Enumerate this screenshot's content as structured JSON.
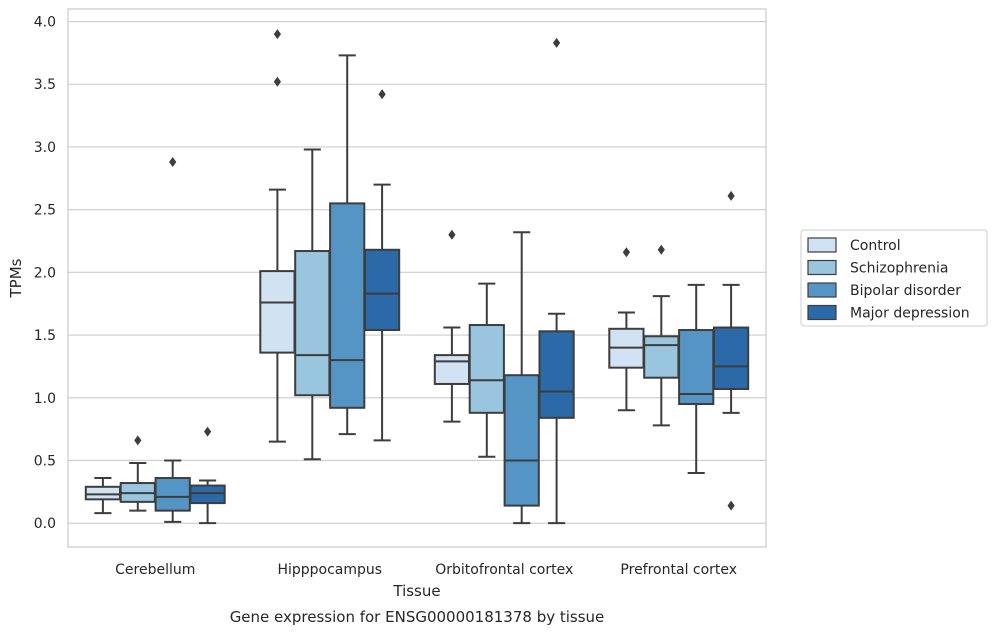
{
  "caption": "Gene expression for ENSG00000181378 by tissue",
  "chart_data": {
    "type": "box",
    "title": "",
    "xlabel": "Tissue",
    "ylabel": "TPMs",
    "ylim": [
      -0.19,
      4.1
    ],
    "yticks": [
      0.0,
      0.5,
      1.0,
      1.5,
      2.0,
      2.5,
      3.0,
      3.5,
      4.0
    ],
    "ytick_labels": [
      "0.0",
      "0.5",
      "1.0",
      "1.5",
      "2.0",
      "2.5",
      "3.0",
      "3.5",
      "4.0"
    ],
    "grid": "horizontal",
    "legend_position": "right",
    "categories": [
      "Cerebellum",
      "Hipppocampus",
      "Orbitofrontal cortex",
      "Prefrontal cortex"
    ],
    "series": [
      {
        "name": "Control",
        "color": "#d1e2f2",
        "boxes": [
          {
            "whisker_low": 0.08,
            "q1": 0.19,
            "median": 0.23,
            "q3": 0.29,
            "whisker_high": 0.36,
            "outliers": []
          },
          {
            "whisker_low": 0.65,
            "q1": 1.36,
            "median": 1.76,
            "q3": 2.01,
            "whisker_high": 2.66,
            "outliers": [
              3.9,
              3.52
            ]
          },
          {
            "whisker_low": 0.81,
            "q1": 1.11,
            "median": 1.29,
            "q3": 1.34,
            "whisker_high": 1.56,
            "outliers": [
              2.3
            ]
          },
          {
            "whisker_low": 0.9,
            "q1": 1.24,
            "median": 1.4,
            "q3": 1.55,
            "whisker_high": 1.68,
            "outliers": [
              2.16
            ]
          }
        ]
      },
      {
        "name": "Schizophrenia",
        "color": "#9ac5de",
        "boxes": [
          {
            "whisker_low": 0.1,
            "q1": 0.17,
            "median": 0.24,
            "q3": 0.32,
            "whisker_high": 0.48,
            "outliers": [
              0.66
            ]
          },
          {
            "whisker_low": 0.51,
            "q1": 1.02,
            "median": 1.34,
            "q3": 2.17,
            "whisker_high": 2.98,
            "outliers": []
          },
          {
            "whisker_low": 0.53,
            "q1": 0.88,
            "median": 1.14,
            "q3": 1.58,
            "whisker_high": 1.91,
            "outliers": []
          },
          {
            "whisker_low": 0.78,
            "q1": 1.16,
            "median": 1.42,
            "q3": 1.49,
            "whisker_high": 1.81,
            "outliers": [
              2.18
            ]
          }
        ]
      },
      {
        "name": "Bipolar disorder",
        "color": "#5495c5",
        "boxes": [
          {
            "whisker_low": 0.01,
            "q1": 0.1,
            "median": 0.21,
            "q3": 0.36,
            "whisker_high": 0.5,
            "outliers": [
              2.88
            ]
          },
          {
            "whisker_low": 0.71,
            "q1": 0.92,
            "median": 1.3,
            "q3": 2.55,
            "whisker_high": 3.73,
            "outliers": []
          },
          {
            "whisker_low": 0.0,
            "q1": 0.14,
            "median": 0.5,
            "q3": 1.18,
            "whisker_high": 2.32,
            "outliers": []
          },
          {
            "whisker_low": 0.4,
            "q1": 0.95,
            "median": 1.03,
            "q3": 1.54,
            "whisker_high": 1.9,
            "outliers": []
          }
        ]
      },
      {
        "name": "Major depression",
        "color": "#2b69a9",
        "boxes": [
          {
            "whisker_low": 0.0,
            "q1": 0.16,
            "median": 0.24,
            "q3": 0.3,
            "whisker_high": 0.34,
            "outliers": [
              0.73
            ]
          },
          {
            "whisker_low": 0.66,
            "q1": 1.54,
            "median": 1.83,
            "q3": 2.18,
            "whisker_high": 2.7,
            "outliers": [
              3.42
            ]
          },
          {
            "whisker_low": 0.0,
            "q1": 0.84,
            "median": 1.05,
            "q3": 1.53,
            "whisker_high": 1.67,
            "outliers": [
              3.83
            ]
          },
          {
            "whisker_low": 0.88,
            "q1": 1.07,
            "median": 1.25,
            "q3": 1.56,
            "whisker_high": 1.9,
            "outliers": [
              0.14,
              2.61
            ]
          }
        ]
      }
    ]
  }
}
